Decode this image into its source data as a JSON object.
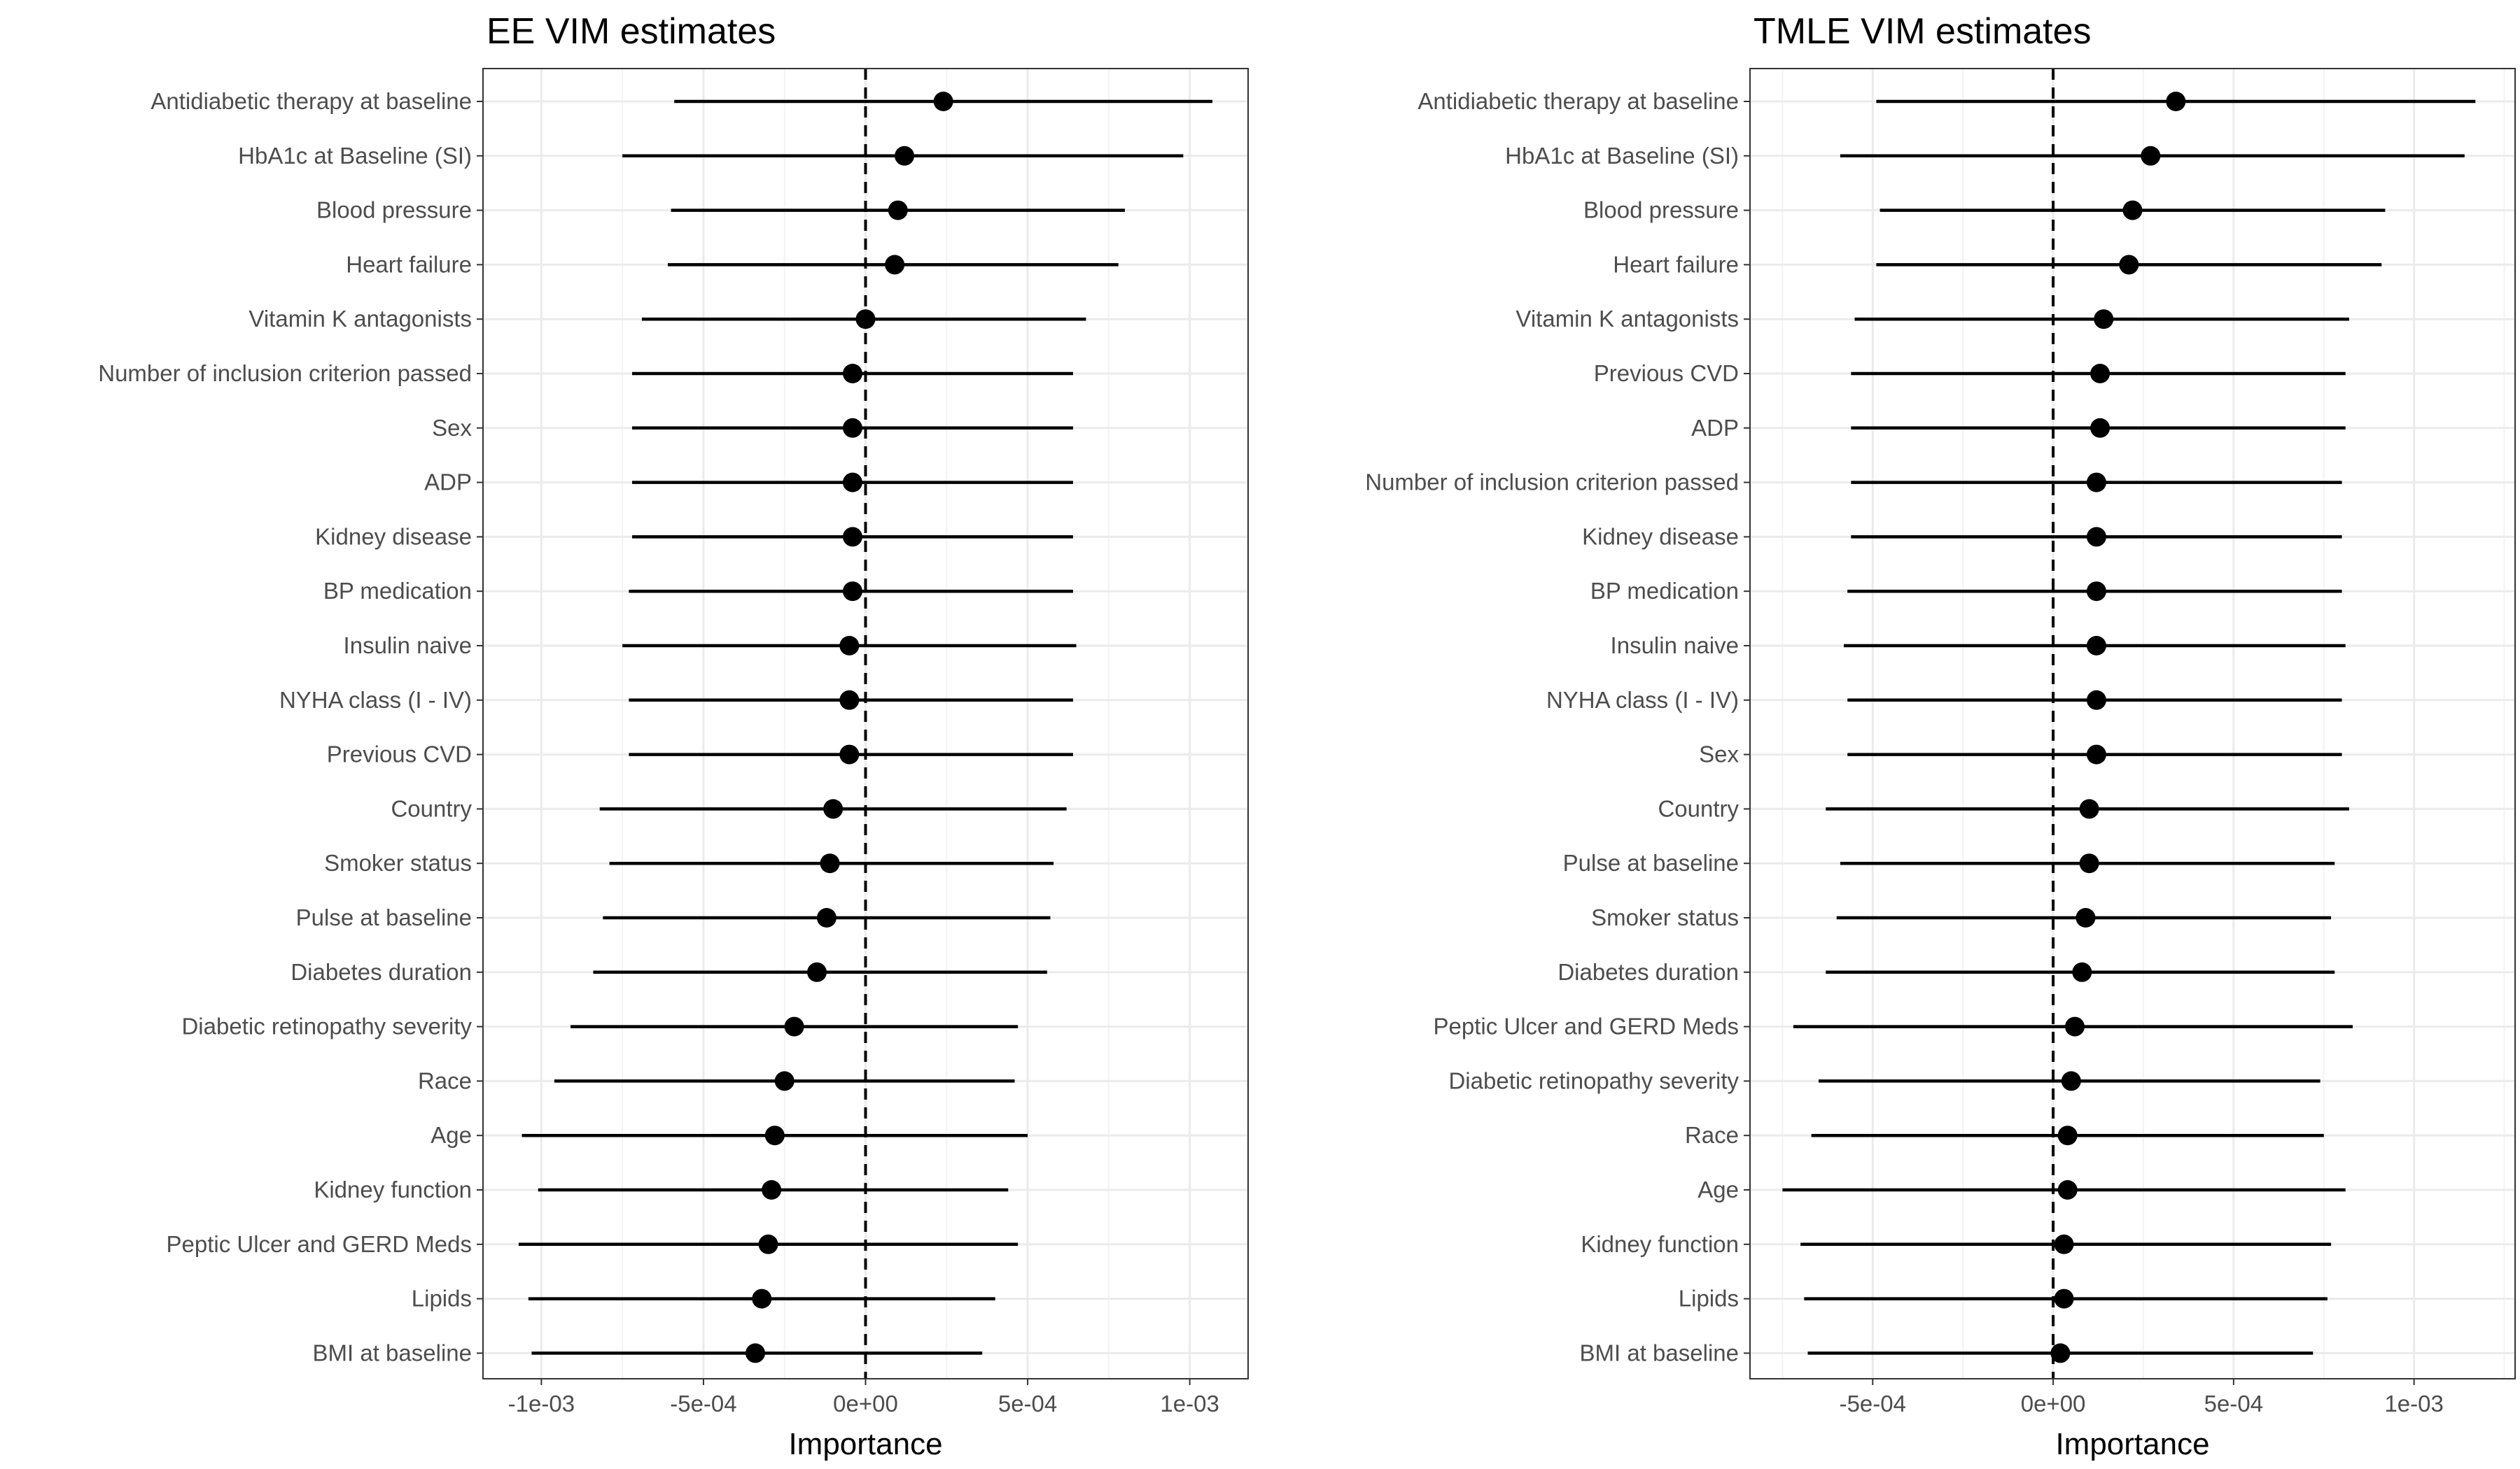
{
  "chart_data": [
    {
      "type": "scatter",
      "title": "EE VIM estimates",
      "xlabel": "Importance",
      "ylabel": "",
      "xlim": [
        -0.00118,
        0.00118
      ],
      "xticks": [
        -0.001,
        -0.0005,
        0,
        0.0005,
        0.001
      ],
      "xtick_labels": [
        "-1e-03",
        "-5e-04",
        "0e+00",
        "5e-04",
        "1e-03"
      ],
      "reference_line": 0,
      "grid": true,
      "categories": [
        "Antidiabetic therapy at baseline",
        "HbA1c at Baseline (SI)",
        "Blood pressure",
        "Heart failure",
        "Vitamin K antagonists",
        "Number of inclusion criterion passed",
        "Sex",
        "ADP",
        "Kidney disease",
        "BP medication",
        "Insulin naive",
        "NYHA class (I - IV)",
        "Previous CVD",
        "Country",
        "Smoker status",
        "Pulse at baseline",
        "Diabetes duration",
        "Diabetic retinopathy severity",
        "Race",
        "Age",
        "Kidney function",
        "Peptic Ulcer and GERD Meds",
        "Lipids",
        "BMI at baseline"
      ],
      "estimate": [
        0.00024,
        0.00012,
        0.0001,
        9e-05,
        0.0,
        -4e-05,
        -4e-05,
        -4e-05,
        -4e-05,
        -4e-05,
        -5e-05,
        -5e-05,
        -5e-05,
        -0.0001,
        -0.00011,
        -0.00012,
        -0.00015,
        -0.00022,
        -0.00025,
        -0.00028,
        -0.00029,
        -0.0003,
        -0.00032,
        -0.00034
      ],
      "lower": [
        -0.00059,
        -0.00075,
        -0.0006,
        -0.00061,
        -0.00069,
        -0.00072,
        -0.00072,
        -0.00072,
        -0.00072,
        -0.00073,
        -0.00075,
        -0.00073,
        -0.00073,
        -0.00082,
        -0.00079,
        -0.00081,
        -0.00084,
        -0.00091,
        -0.00096,
        -0.00106,
        -0.00101,
        -0.00107,
        -0.00104,
        -0.00103
      ],
      "upper": [
        0.00107,
        0.00098,
        0.0008,
        0.00078,
        0.00068,
        0.00064,
        0.00064,
        0.00064,
        0.00064,
        0.00064,
        0.00065,
        0.00064,
        0.00064,
        0.00062,
        0.00058,
        0.00057,
        0.00056,
        0.00047,
        0.00046,
        0.0005,
        0.00044,
        0.00047,
        0.0004,
        0.00036
      ]
    },
    {
      "type": "scatter",
      "title": "TMLE VIM estimates",
      "xlabel": "Importance",
      "ylabel": "",
      "xlim": [
        -0.00084,
        0.00128
      ],
      "xticks": [
        -0.0005,
        0,
        0.0005,
        0.001
      ],
      "xtick_labels": [
        "-5e-04",
        "0e+00",
        "5e-04",
        "1e-03"
      ],
      "reference_line": 0,
      "grid": true,
      "categories": [
        "Antidiabetic therapy at baseline",
        "HbA1c at Baseline (SI)",
        "Blood pressure",
        "Heart failure",
        "Vitamin K antagonists",
        "Previous CVD",
        "ADP",
        "Number of inclusion criterion passed",
        "Kidney disease",
        "BP medication",
        "Insulin naive",
        "NYHA class (I - IV)",
        "Sex",
        "Country",
        "Pulse at baseline",
        "Smoker status",
        "Diabetes duration",
        "Peptic Ulcer and GERD Meds",
        "Diabetic retinopathy severity",
        "Race",
        "Age",
        "Kidney function",
        "Lipids",
        "BMI at baseline"
      ],
      "estimate": [
        0.00034,
        0.00027,
        0.00022,
        0.00021,
        0.00014,
        0.00013,
        0.00013,
        0.00012,
        0.00012,
        0.00012,
        0.00012,
        0.00012,
        0.00012,
        0.0001,
        0.0001,
        9e-05,
        8e-05,
        6e-05,
        5e-05,
        4e-05,
        4e-05,
        3e-05,
        3e-05,
        2e-05
      ],
      "lower": [
        -0.00049,
        -0.00059,
        -0.00048,
        -0.00049,
        -0.00055,
        -0.00056,
        -0.00056,
        -0.00056,
        -0.00056,
        -0.00057,
        -0.00058,
        -0.00057,
        -0.00057,
        -0.00063,
        -0.00059,
        -0.0006,
        -0.00063,
        -0.00072,
        -0.00065,
        -0.00067,
        -0.00075,
        -0.0007,
        -0.00069,
        -0.00068
      ],
      "upper": [
        0.00117,
        0.00114,
        0.00092,
        0.00091,
        0.00082,
        0.00081,
        0.00081,
        0.0008,
        0.0008,
        0.0008,
        0.00081,
        0.0008,
        0.0008,
        0.00082,
        0.00078,
        0.00077,
        0.00078,
        0.00083,
        0.00074,
        0.00075,
        0.00081,
        0.00077,
        0.00076,
        0.00072
      ]
    }
  ]
}
